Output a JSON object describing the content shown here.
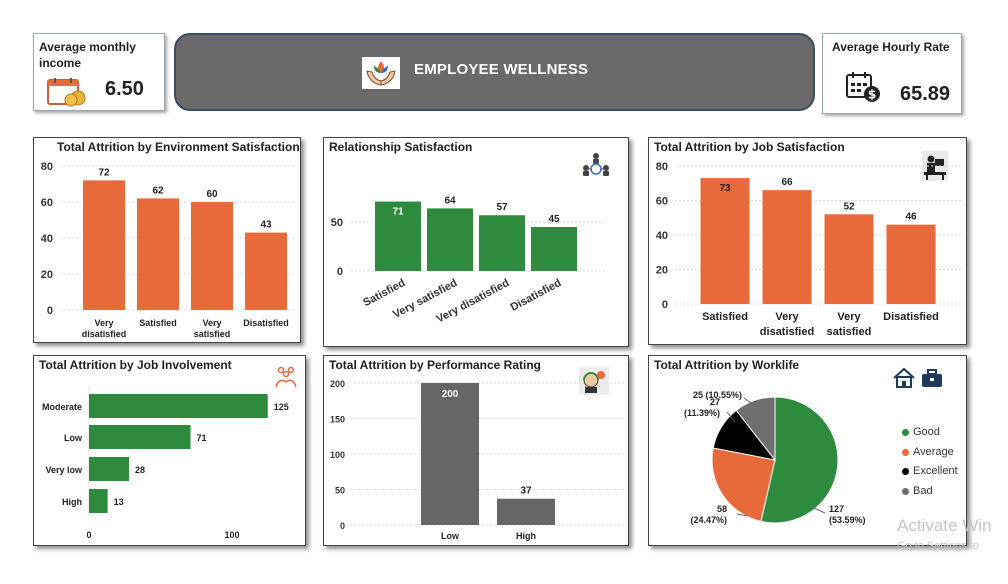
{
  "kpis": {
    "income": {
      "label": "Average monthly income",
      "value": "6.50"
    },
    "hourly": {
      "label": "Average Hourly Rate",
      "value": "65.89"
    }
  },
  "banner": {
    "title": "EMPLOYEE WELLNESS"
  },
  "colors": {
    "orange": "#e8693a",
    "green": "#2e8b3d",
    "grey": "#666666",
    "black": "#000000",
    "grey_slice": "#6e6e6e"
  },
  "watermark": {
    "line1": "Activate Win",
    "line2": "Go to Settings to"
  },
  "chart_data": [
    {
      "id": "env",
      "type": "bar",
      "title": "Total Attrition by Environment Satisfaction",
      "categories": [
        "Very disatisfied",
        "Satisfied",
        "Very satisfied",
        "Disatisfied"
      ],
      "values": [
        72,
        62,
        60,
        43
      ],
      "ylim": [
        0,
        80
      ],
      "yticks": [
        "0",
        "20",
        "40",
        "60",
        "80"
      ],
      "grid": true
    },
    {
      "id": "rel",
      "type": "bar",
      "title": "Relationship Satisfaction",
      "categories": [
        "Satisfied",
        "Very satisfied",
        "Very disatisfied",
        "Disatisfied"
      ],
      "values": [
        71,
        64,
        57,
        45
      ],
      "yticks": [
        "0",
        "50"
      ],
      "grid": true
    },
    {
      "id": "job",
      "type": "bar",
      "title": "Total Attrition by Job Satisfaction",
      "categories": [
        "Satisfied",
        "Very disatisfied",
        "Very satisfied",
        "Disatisfied"
      ],
      "values": [
        73,
        66,
        52,
        46
      ],
      "ylim": [
        0,
        80
      ],
      "yticks": [
        "0",
        "20",
        "40",
        "60",
        "80"
      ],
      "grid": true
    },
    {
      "id": "inv",
      "type": "bar",
      "orientation": "horizontal",
      "title": "Total Attrition by Job Involvement",
      "categories": [
        "Moderate",
        "Low",
        "Very low",
        "High"
      ],
      "values": [
        125,
        71,
        28,
        13
      ],
      "xticks": [
        "0",
        "100"
      ]
    },
    {
      "id": "perf",
      "type": "bar",
      "title": "Total Attrition by Performance Rating",
      "categories": [
        "Low",
        "High"
      ],
      "values": [
        200,
        37
      ],
      "ylim": [
        0,
        200
      ],
      "yticks": [
        "0",
        "50",
        "100",
        "150",
        "200"
      ],
      "grid": true
    },
    {
      "id": "work",
      "type": "pie",
      "title": "Total Attrition by Worklife",
      "slices": [
        {
          "name": "Good",
          "value": 127,
          "label": "127",
          "pct": "(53.59%)"
        },
        {
          "name": "Average",
          "value": 58,
          "label": "58",
          "pct": "(24.47%)"
        },
        {
          "name": "Excellent",
          "value": 27,
          "label": "27",
          "pct": "(11.39%)"
        },
        {
          "name": "Bad",
          "value": 25,
          "label": "25 (10.55%)",
          "pct": ""
        }
      ],
      "legend": [
        "Good",
        "Average",
        "Excellent",
        "Bad"
      ]
    }
  ]
}
